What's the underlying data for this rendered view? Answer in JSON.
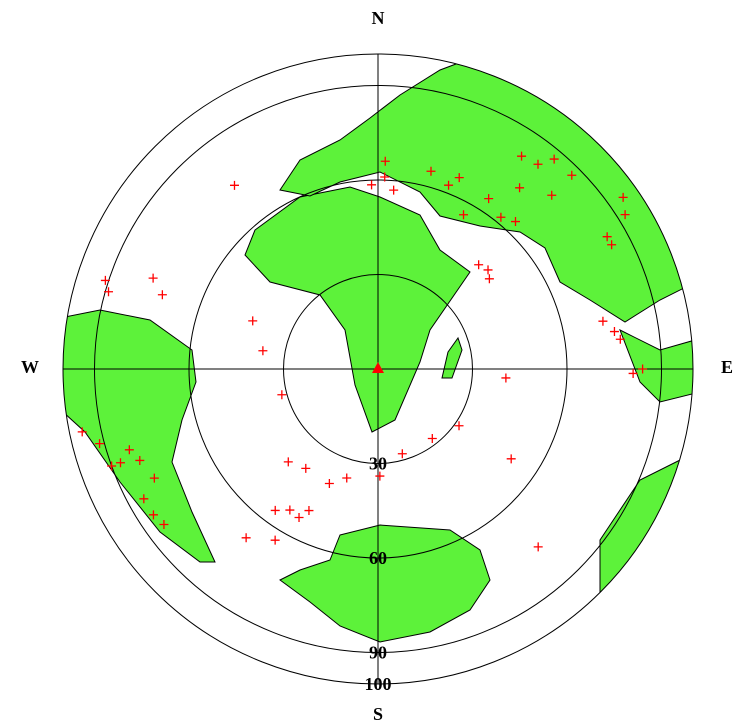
{
  "map": {
    "compass": {
      "north": "N",
      "east": "E",
      "south": "S",
      "west": "W"
    },
    "rings": [
      30,
      60,
      90,
      100
    ],
    "event_color": "#ff0000",
    "land_color": "#5df23a",
    "events": [
      {
        "azimuth": 322,
        "distance": 74
      },
      {
        "azimuth": 2,
        "distance": 66
      },
      {
        "azimuth": 2,
        "distance": 61
      },
      {
        "azimuth": 358,
        "distance": 58.5
      },
      {
        "azimuth": 5,
        "distance": 57
      },
      {
        "azimuth": 15,
        "distance": 65
      },
      {
        "azimuth": 21,
        "distance": 62.5
      },
      {
        "azimuth": 23,
        "distance": 66
      },
      {
        "azimuth": 29,
        "distance": 56
      },
      {
        "azimuth": 33,
        "distance": 64.5
      },
      {
        "azimuth": 38,
        "distance": 73
      },
      {
        "azimuth": 34,
        "distance": 81.5
      },
      {
        "azimuth": 38,
        "distance": 82.5
      },
      {
        "azimuth": 45,
        "distance": 78
      },
      {
        "azimuth": 45,
        "distance": 87
      },
      {
        "azimuth": 40,
        "distance": 87
      },
      {
        "azimuth": 43,
        "distance": 64
      },
      {
        "azimuth": 39,
        "distance": 62
      },
      {
        "azimuth": 55,
        "distance": 95
      },
      {
        "azimuth": 58,
        "distance": 92.5
      },
      {
        "azimuth": 60,
        "distance": 84
      },
      {
        "azimuth": 62,
        "distance": 84
      },
      {
        "azimuth": 78,
        "distance": 73
      },
      {
        "azimuth": 81,
        "distance": 76
      },
      {
        "azimuth": 83,
        "distance": 77.5
      },
      {
        "azimuth": 91,
        "distance": 81
      },
      {
        "azimuth": 90,
        "distance": 84
      },
      {
        "azimuth": 44,
        "distance": 46
      },
      {
        "azimuth": 48,
        "distance": 47
      },
      {
        "azimuth": 51,
        "distance": 45.5
      },
      {
        "azimuth": 94,
        "distance": 40.7
      },
      {
        "azimuth": 124,
        "distance": 51
      },
      {
        "azimuth": 138,
        "distance": 76
      },
      {
        "azimuth": 125,
        "distance": 31.4
      },
      {
        "azimuth": 142,
        "distance": 28
      },
      {
        "azimuth": 164,
        "distance": 28
      },
      {
        "azimuth": 179,
        "distance": 34
      },
      {
        "azimuth": 196,
        "distance": 36
      },
      {
        "azimuth": 203,
        "distance": 39.5
      },
      {
        "azimuth": 216,
        "distance": 39
      },
      {
        "azimuth": 224,
        "distance": 41
      },
      {
        "azimuth": 255,
        "distance": 31.6
      },
      {
        "azimuth": 279,
        "distance": 37
      },
      {
        "azimuth": 291,
        "distance": 42.6
      },
      {
        "azimuth": 216,
        "distance": 55.5
      },
      {
        "azimuth": 212,
        "distance": 52.8
      },
      {
        "azimuth": 208,
        "distance": 53.4
      },
      {
        "azimuth": 206,
        "distance": 50
      },
      {
        "azimuth": 211,
        "distance": 63.4
      },
      {
        "azimuth": 218,
        "distance": 68
      },
      {
        "azimuth": 292,
        "distance": 77
      },
      {
        "azimuth": 289,
        "distance": 72.4
      },
      {
        "azimuth": 288,
        "distance": 91
      },
      {
        "azimuth": 286,
        "distance": 89
      },
      {
        "azimuth": 258,
        "distance": 96
      },
      {
        "azimuth": 255,
        "distance": 91.5
      },
      {
        "azimuth": 250,
        "distance": 87
      },
      {
        "azimuth": 249,
        "distance": 81
      },
      {
        "azimuth": 244,
        "distance": 79
      },
      {
        "azimuth": 241,
        "distance": 85
      },
      {
        "azimuth": 237,
        "distance": 85
      },
      {
        "azimuth": 234,
        "distance": 84
      },
      {
        "azimuth": 252,
        "distance": 83
      },
      {
        "azimuth": 250,
        "distance": 90
      }
    ]
  }
}
